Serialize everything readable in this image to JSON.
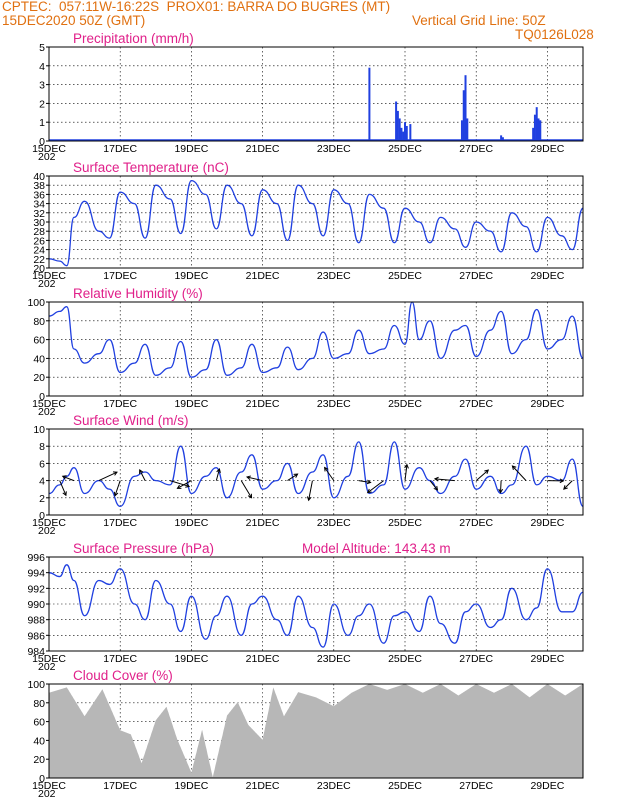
{
  "header": {
    "left1": "CPTEC:  057:11W-16:22S  PROX01: BARRA DO BUGRES (MT)",
    "left2": "15DEC2020 50Z (GMT)",
    "right2": "Vertical Grid Line: 50Z",
    "right3": "TQ0126L028"
  },
  "colors": {
    "line": "#2040e0",
    "title": "#e0208a",
    "header": "#e07010",
    "cloud": "#b0b0b0",
    "arrow": "#000000"
  },
  "x_ticks": [
    "15DEC",
    "17DEC",
    "19DEC",
    "21DEC",
    "23DEC",
    "25DEC",
    "27DEC",
    "29DEC"
  ],
  "x_tick_year_fragment": "202",
  "chart_data": [
    {
      "type": "bar",
      "title": "Precipitation (mm/h)",
      "ylim": [
        0,
        5
      ],
      "yticks": [
        "0",
        "1",
        "2",
        "3",
        "4",
        "5"
      ],
      "x_range_days": [
        15,
        30
      ],
      "bars": [
        {
          "x": 24.0,
          "v": 3.9
        },
        {
          "x": 24.75,
          "v": 2.1
        },
        {
          "x": 24.8,
          "v": 1.6
        },
        {
          "x": 24.85,
          "v": 1.2
        },
        {
          "x": 24.9,
          "v": 0.7
        },
        {
          "x": 24.95,
          "v": 0.5
        },
        {
          "x": 25.0,
          "v": 1.0
        },
        {
          "x": 25.05,
          "v": 0.8
        },
        {
          "x": 25.15,
          "v": 0.9
        },
        {
          "x": 26.6,
          "v": 1.1
        },
        {
          "x": 26.65,
          "v": 2.7
        },
        {
          "x": 26.7,
          "v": 3.5
        },
        {
          "x": 26.75,
          "v": 1.2
        },
        {
          "x": 27.7,
          "v": 0.3
        },
        {
          "x": 27.75,
          "v": 0.2
        },
        {
          "x": 28.6,
          "v": 0.7
        },
        {
          "x": 28.65,
          "v": 1.4
        },
        {
          "x": 28.7,
          "v": 1.8
        },
        {
          "x": 28.75,
          "v": 1.2
        },
        {
          "x": 28.8,
          "v": 1.1
        }
      ]
    },
    {
      "type": "line",
      "title": "Surface Temperature (nC)",
      "ylim": [
        20,
        40
      ],
      "yticks": [
        "20",
        "22",
        "24",
        "26",
        "28",
        "30",
        "32",
        "34",
        "36",
        "38",
        "40"
      ],
      "x_range_days": [
        15,
        30
      ],
      "x": [
        15.0,
        15.3,
        15.5,
        15.7,
        16.0,
        16.4,
        16.7,
        17.0,
        17.4,
        17.7,
        18.0,
        18.4,
        18.7,
        19.0,
        19.4,
        19.7,
        20.0,
        20.4,
        20.7,
        21.0,
        21.4,
        21.7,
        22.0,
        22.4,
        22.7,
        23.0,
        23.4,
        23.7,
        24.0,
        24.4,
        24.7,
        25.0,
        25.4,
        25.7,
        26.0,
        26.4,
        26.7,
        27.0,
        27.4,
        27.7,
        28.0,
        28.4,
        28.7,
        29.0,
        29.4,
        29.7,
        30.0
      ],
      "values": [
        22,
        21.5,
        20.5,
        31,
        34.5,
        28,
        26.5,
        36.5,
        34,
        26.5,
        38,
        35,
        27.5,
        39,
        36,
        28.5,
        38,
        34,
        27,
        37,
        34,
        26,
        38,
        34,
        27,
        37,
        34,
        25.5,
        36,
        33,
        25.5,
        33,
        30,
        25.5,
        31,
        28.5,
        24.5,
        30,
        28,
        23.5,
        32,
        29,
        23.5,
        31,
        27,
        24,
        33
      ]
    },
    {
      "type": "line",
      "title": "Relative Humidity (%)",
      "ylim": [
        0,
        100
      ],
      "yticks": [
        "0",
        "20",
        "40",
        "60",
        "80",
        "100"
      ],
      "x_range_days": [
        15,
        30
      ],
      "x": [
        15.0,
        15.3,
        15.5,
        15.7,
        16.0,
        16.4,
        16.7,
        17.0,
        17.4,
        17.7,
        18.0,
        18.4,
        18.7,
        19.0,
        19.4,
        19.7,
        20.0,
        20.4,
        20.7,
        21.0,
        21.4,
        21.7,
        22.0,
        22.4,
        22.7,
        23.0,
        23.4,
        23.7,
        24.0,
        24.4,
        24.7,
        25.0,
        25.2,
        25.4,
        25.7,
        26.0,
        26.4,
        26.7,
        27.0,
        27.4,
        27.7,
        28.0,
        28.4,
        28.7,
        29.0,
        29.4,
        29.7,
        30.0
      ],
      "values": [
        85,
        90,
        95,
        50,
        35,
        45,
        60,
        25,
        35,
        55,
        22,
        30,
        58,
        20,
        28,
        60,
        22,
        30,
        55,
        25,
        30,
        52,
        28,
        40,
        68,
        40,
        45,
        70,
        45,
        50,
        75,
        55,
        100,
        60,
        80,
        40,
        70,
        75,
        42,
        70,
        90,
        45,
        60,
        92,
        50,
        60,
        85,
        40
      ]
    },
    {
      "type": "line",
      "title": "Surface Wind (m/s)",
      "ylim": [
        0,
        10
      ],
      "yticks": [
        "0",
        "2",
        "4",
        "6",
        "8",
        "10"
      ],
      "x_range_days": [
        15,
        30
      ],
      "x": [
        15.0,
        15.3,
        15.5,
        15.7,
        16.0,
        16.4,
        16.7,
        17.0,
        17.4,
        17.7,
        18.0,
        18.4,
        18.7,
        19.0,
        19.4,
        19.7,
        20.0,
        20.4,
        20.7,
        21.0,
        21.4,
        21.7,
        22.0,
        22.4,
        22.7,
        23.0,
        23.4,
        23.7,
        24.0,
        24.4,
        24.7,
        25.0,
        25.4,
        25.7,
        26.0,
        26.4,
        26.7,
        27.0,
        27.4,
        27.7,
        28.0,
        28.4,
        28.7,
        29.0,
        29.4,
        29.7,
        30.0
      ],
      "values": [
        2.5,
        3.5,
        4.5,
        5.5,
        2.5,
        4.0,
        3.0,
        1.0,
        4.5,
        5.0,
        4.0,
        3.5,
        8.0,
        2.5,
        4.5,
        5.5,
        2.0,
        5.0,
        7.0,
        3.0,
        4.0,
        6.0,
        2.5,
        5.0,
        7.0,
        2.0,
        4.5,
        8.5,
        2.5,
        3.5,
        8.5,
        3.0,
        5.5,
        4.0,
        2.5,
        4.5,
        6.5,
        3.0,
        4.5,
        2.5,
        3.5,
        8.0,
        3.5,
        4.5,
        4.0,
        6.5,
        1.0
      ],
      "arrow_labels": "wind vectors"
    },
    {
      "type": "line",
      "title": "Surface Pressure (hPa)",
      "subtitle": "Model Altitude: 143.43 m",
      "ylim": [
        984,
        996
      ],
      "yticks": [
        "984",
        "986",
        "988",
        "990",
        "992",
        "994",
        "996"
      ],
      "x_range_days": [
        15,
        30
      ],
      "x": [
        15.0,
        15.3,
        15.5,
        15.7,
        16.0,
        16.4,
        16.7,
        17.0,
        17.4,
        17.7,
        18.0,
        18.4,
        18.7,
        19.0,
        19.4,
        19.7,
        20.0,
        20.4,
        20.7,
        21.0,
        21.4,
        21.7,
        22.0,
        22.4,
        22.7,
        23.0,
        23.4,
        23.7,
        24.0,
        24.4,
        24.7,
        25.0,
        25.4,
        25.7,
        26.0,
        26.4,
        26.7,
        27.0,
        27.4,
        27.7,
        28.0,
        28.4,
        28.7,
        29.0,
        29.4,
        29.7,
        30.0
      ],
      "values": [
        994,
        993.5,
        995,
        993,
        988.5,
        993,
        992.5,
        994.5,
        990,
        988,
        993,
        990,
        986.5,
        991,
        985.5,
        988.5,
        991,
        986,
        990,
        991,
        988,
        986,
        991,
        987,
        984.5,
        990,
        986,
        988.5,
        990,
        985,
        988.5,
        989,
        986.5,
        991,
        987.5,
        985,
        989,
        990,
        987,
        988,
        992,
        988,
        989.5,
        994.5,
        989,
        989,
        991.5
      ]
    },
    {
      "type": "bar",
      "title": "Cloud Cover (%)",
      "ylim": [
        0,
        100
      ],
      "yticks": [
        "0",
        "20",
        "40",
        "60",
        "80",
        "100"
      ],
      "x_range_days": [
        15,
        30
      ],
      "x": [
        15.0,
        15.5,
        16.0,
        16.5,
        17.0,
        17.3,
        17.6,
        18.0,
        18.3,
        18.6,
        19.0,
        19.3,
        19.6,
        20.0,
        20.3,
        20.6,
        21.0,
        21.3,
        21.6,
        22.0,
        22.5,
        23.0,
        23.5,
        24.0,
        24.5,
        25.0,
        25.5,
        26.0,
        26.5,
        27.0,
        27.5,
        28.0,
        28.5,
        29.0,
        29.5,
        30.0
      ],
      "values": [
        95,
        90,
        70,
        88,
        55,
        40,
        20,
        55,
        80,
        35,
        10,
        45,
        5,
        60,
        85,
        50,
        45,
        90,
        70,
        85,
        90,
        70,
        95,
        95,
        98,
        95,
        95,
        96,
        92,
        98,
        95,
        96,
        90,
        95,
        92,
        95
      ]
    }
  ]
}
